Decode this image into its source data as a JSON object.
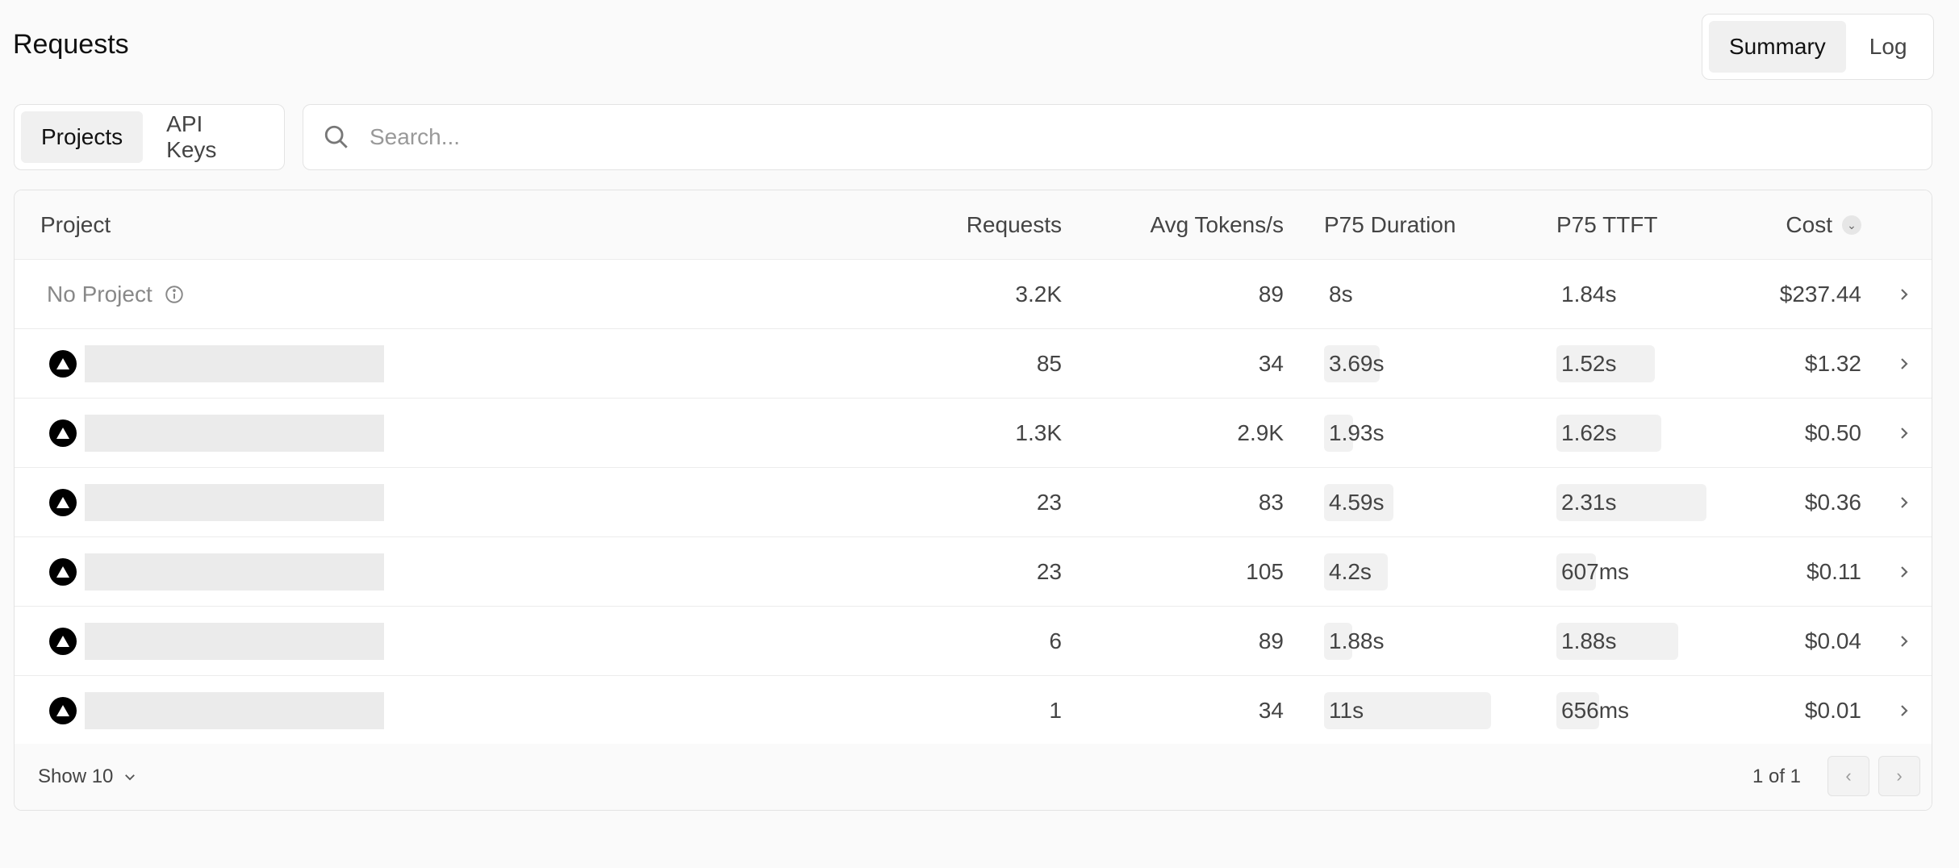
{
  "header": {
    "title": "Requests",
    "view_options": [
      "Summary",
      "Log"
    ],
    "active_view": "Summary"
  },
  "group_tabs": {
    "items": [
      "Projects",
      "API Keys"
    ],
    "active": "Projects"
  },
  "search": {
    "placeholder": "Search...",
    "value": ""
  },
  "table": {
    "columns": [
      "Project",
      "Requests",
      "Avg Tokens/s",
      "P75 Duration",
      "P75 TTFT",
      "Cost"
    ],
    "sort": {
      "column": "Cost",
      "direction": "descending"
    },
    "rows": [
      {
        "project": "No Project",
        "requests": "3.2K",
        "avg_tokens": "89",
        "p75_duration": "8s",
        "duration_s": null,
        "p75_ttft": "1.84s",
        "ttft_s": null,
        "cost": "$237.44"
      },
      {
        "project": "",
        "requests": "85",
        "avg_tokens": "34",
        "p75_duration": "3.69s",
        "duration_s": 3.69,
        "p75_ttft": "1.52s",
        "ttft_s": 1.52,
        "cost": "$1.32"
      },
      {
        "project": "",
        "requests": "1.3K",
        "avg_tokens": "2.9K",
        "p75_duration": "1.93s",
        "duration_s": 1.93,
        "p75_ttft": "1.62s",
        "ttft_s": 1.62,
        "cost": "$0.50"
      },
      {
        "project": "",
        "requests": "23",
        "avg_tokens": "83",
        "p75_duration": "4.59s",
        "duration_s": 4.59,
        "p75_ttft": "2.31s",
        "ttft_s": 2.31,
        "cost": "$0.36"
      },
      {
        "project": "",
        "requests": "23",
        "avg_tokens": "105",
        "p75_duration": "4.2s",
        "duration_s": 4.2,
        "p75_ttft": "607ms",
        "ttft_s": 0.607,
        "cost": "$0.11"
      },
      {
        "project": "",
        "requests": "6",
        "avg_tokens": "89",
        "p75_duration": "1.88s",
        "duration_s": 1.88,
        "p75_ttft": "1.88s",
        "ttft_s": 1.88,
        "cost": "$0.04"
      },
      {
        "project": "",
        "requests": "1",
        "avg_tokens": "34",
        "p75_duration": "11s",
        "duration_s": 11,
        "p75_ttft": "656ms",
        "ttft_s": 0.656,
        "cost": "$0.01"
      }
    ]
  },
  "footer": {
    "page_size": "Show 10",
    "page_info": "1 of 1"
  },
  "colors": {
    "background": "#fafafa",
    "bar": "#f1f1f1",
    "placeholder": "#ebebeb"
  }
}
